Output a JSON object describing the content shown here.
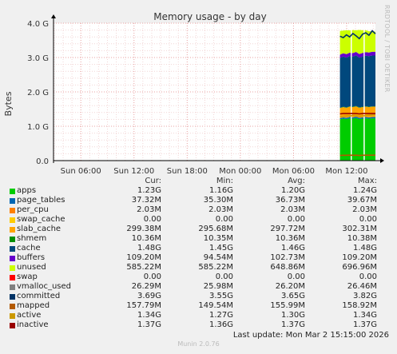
{
  "chart_data": {
    "type": "area",
    "title": "Memory usage - by day",
    "ylabel": "Bytes",
    "ylim": [
      0,
      4
    ],
    "y_unit": "G",
    "yticks": [
      "0.0",
      "1.0 G",
      "2.0 G",
      "3.0 G",
      "4.0 G"
    ],
    "yticks_values": [
      0,
      1,
      2,
      3,
      4
    ],
    "xticks": [
      "Sun 06:00",
      "Sun 12:00",
      "Sun 18:00",
      "Mon 00:00",
      "Mon 06:00",
      "Mon 12:00"
    ],
    "x_start": "Sun 02:55",
    "x_end": "Mon 15:15",
    "data_start": "Mon 11:15",
    "grid": true,
    "columns": [
      "Cur:",
      "Min:",
      "Avg:",
      "Max:"
    ],
    "series": [
      {
        "name": "apps",
        "color": "#00cc00",
        "cur": "1.23G",
        "min": "1.16G",
        "avg": "1.20G",
        "max": "1.24G"
      },
      {
        "name": "page_tables",
        "color": "#0066b3",
        "cur": "37.32M",
        "min": "35.30M",
        "avg": "36.73M",
        "max": "39.67M"
      },
      {
        "name": "per_cpu",
        "color": "#ff8000",
        "cur": "2.03M",
        "min": "2.03M",
        "avg": "2.03M",
        "max": "2.03M"
      },
      {
        "name": "swap_cache",
        "color": "#ffcc00",
        "cur": "0.00",
        "min": "0.00",
        "avg": "0.00",
        "max": "0.00"
      },
      {
        "name": "slab_cache",
        "color": "#ffa500",
        "cur": "299.38M",
        "min": "295.68M",
        "avg": "297.72M",
        "max": "302.31M"
      },
      {
        "name": "shmem",
        "color": "#008f00",
        "cur": "10.36M",
        "min": "10.35M",
        "avg": "10.36M",
        "max": "10.38M"
      },
      {
        "name": "cache",
        "color": "#00487d",
        "cur": "1.48G",
        "min": "1.45G",
        "avg": "1.46G",
        "max": "1.48G"
      },
      {
        "name": "buffers",
        "color": "#6600cc",
        "cur": "109.20M",
        "min": "94.54M",
        "avg": "102.73M",
        "max": "109.20M"
      },
      {
        "name": "unused",
        "color": "#ccff00",
        "cur": "585.22M",
        "min": "585.22M",
        "avg": "648.86M",
        "max": "696.96M"
      },
      {
        "name": "swap",
        "color": "#ff0000",
        "cur": "0.00",
        "min": "0.00",
        "avg": "0.00",
        "max": "0.00"
      },
      {
        "name": "vmalloc_used",
        "color": "#808080",
        "cur": "26.29M",
        "min": "25.98M",
        "avg": "26.20M",
        "max": "26.46M"
      },
      {
        "name": "committed",
        "color": "#003366",
        "cur": "3.69G",
        "min": "3.55G",
        "avg": "3.65G",
        "max": "3.82G"
      },
      {
        "name": "mapped",
        "color": "#b35a00",
        "cur": "157.79M",
        "min": "149.54M",
        "avg": "155.99M",
        "max": "158.92M"
      },
      {
        "name": "active",
        "color": "#cc9900",
        "cur": "1.34G",
        "min": "1.27G",
        "avg": "1.30G",
        "max": "1.34G"
      },
      {
        "name": "inactive",
        "color": "#990000",
        "cur": "1.37G",
        "min": "1.36G",
        "avg": "1.37G",
        "max": "1.37G"
      }
    ],
    "stack_samples": {
      "apps": [
        1.2,
        1.22,
        1.21,
        1.23,
        1.22,
        1.24,
        1.21,
        1.22,
        1.23,
        1.22,
        1.23,
        1.23
      ],
      "page_tables": [
        0.036,
        0.037,
        0.036,
        0.037,
        0.037,
        0.038,
        0.036,
        0.037,
        0.038,
        0.037,
        0.037,
        0.037
      ],
      "per_cpu": [
        0.002,
        0.002,
        0.002,
        0.002,
        0.002,
        0.002,
        0.002,
        0.002,
        0.002,
        0.002,
        0.002,
        0.002
      ],
      "slab_cache": [
        0.29,
        0.3,
        0.29,
        0.3,
        0.3,
        0.3,
        0.29,
        0.3,
        0.3,
        0.3,
        0.3,
        0.3
      ],
      "shmem": [
        0.01,
        0.01,
        0.01,
        0.01,
        0.01,
        0.01,
        0.01,
        0.01,
        0.01,
        0.01,
        0.01,
        0.01
      ],
      "cache": [
        1.45,
        1.46,
        1.45,
        1.46,
        1.46,
        1.47,
        1.45,
        1.46,
        1.47,
        1.47,
        1.48,
        1.48
      ],
      "buffers": [
        0.095,
        0.097,
        0.099,
        0.101,
        0.102,
        0.103,
        0.104,
        0.105,
        0.106,
        0.107,
        0.108,
        0.109
      ],
      "unused": [
        0.69,
        0.66,
        0.7,
        0.65,
        0.67,
        0.63,
        0.7,
        0.66,
        0.64,
        0.62,
        0.6,
        0.585
      ]
    },
    "line_samples": {
      "committed": [
        3.62,
        3.58,
        3.66,
        3.6,
        3.7,
        3.63,
        3.55,
        3.68,
        3.72,
        3.65,
        3.78,
        3.69
      ],
      "mapped": [
        0.15,
        0.155,
        0.156,
        0.157,
        0.156,
        0.158,
        0.15,
        0.155,
        0.157,
        0.158,
        0.158,
        0.158
      ],
      "active": [
        1.28,
        1.29,
        1.3,
        1.3,
        1.31,
        1.31,
        1.29,
        1.3,
        1.31,
        1.32,
        1.33,
        1.34
      ],
      "inactive": [
        1.36,
        1.37,
        1.37,
        1.37,
        1.37,
        1.37,
        1.36,
        1.37,
        1.37,
        1.37,
        1.37,
        1.37
      ]
    }
  },
  "last_update": "Last update: Mon Mar  2 15:15:00 2026",
  "footer": "Munin 2.0.76",
  "side_label": "RRDTOOL / TOBI OETIKER"
}
